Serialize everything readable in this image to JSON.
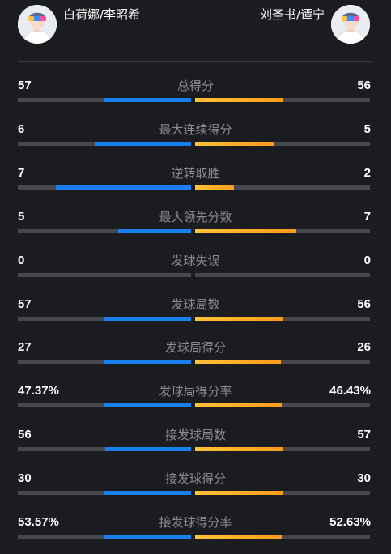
{
  "players": {
    "left": {
      "name": "白荷娜/李昭希"
    },
    "right": {
      "name": "刘圣书/谭宁"
    }
  },
  "colors": {
    "left_bar": "#1a7ff0",
    "right_bar": "#ffab25",
    "track": "#47484d"
  },
  "stats": [
    {
      "label": "总得分",
      "left": "57",
      "right": "56",
      "left_fill": 0.505,
      "right_fill": 0.5
    },
    {
      "label": "最大连续得分",
      "left": "6",
      "right": "5",
      "left_fill": 0.555,
      "right_fill": 0.455
    },
    {
      "label": "逆转取胜",
      "left": "7",
      "right": "2",
      "left_fill": 0.78,
      "right_fill": 0.22
    },
    {
      "label": "最大领先分数",
      "left": "5",
      "right": "7",
      "left_fill": 0.42,
      "right_fill": 0.58
    },
    {
      "label": "发球失误",
      "left": "0",
      "right": "0",
      "left_fill": 0,
      "right_fill": 0
    },
    {
      "label": "发球局数",
      "left": "57",
      "right": "56",
      "left_fill": 0.505,
      "right_fill": 0.5
    },
    {
      "label": "发球局得分",
      "left": "27",
      "right": "26",
      "left_fill": 0.505,
      "right_fill": 0.49
    },
    {
      "label": "发球局得分率",
      "left": "47.37%",
      "right": "46.43%",
      "left_fill": 0.505,
      "right_fill": 0.495
    },
    {
      "label": "接发球局数",
      "left": "56",
      "right": "57",
      "left_fill": 0.495,
      "right_fill": 0.505
    },
    {
      "label": "接发球得分",
      "left": "30",
      "right": "30",
      "left_fill": 0.5,
      "right_fill": 0.5
    },
    {
      "label": "接发球得分率",
      "left": "53.57%",
      "right": "52.63%",
      "left_fill": 0.505,
      "right_fill": 0.495
    }
  ]
}
